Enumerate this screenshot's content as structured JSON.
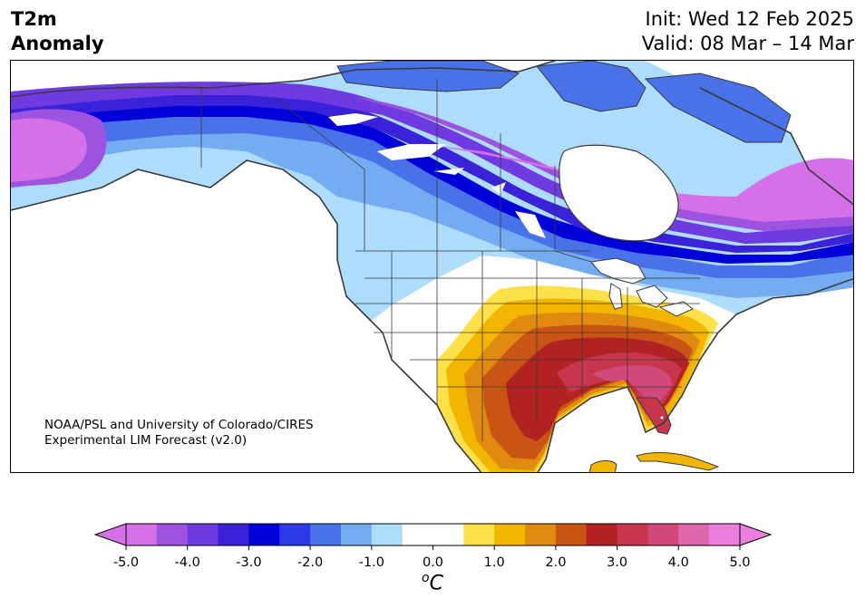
{
  "header": {
    "title_line1": "T2m",
    "title_line2": "Anomaly",
    "init": "Init: Wed 12 Feb 2025",
    "valid": "Valid: 08 Mar – 14 Mar"
  },
  "credit": {
    "line1": "NOAA/PSL and University of Colorado/CIRES",
    "line2": "Experimental LIM Forecast (v2.0)"
  },
  "colorbar": {
    "unit_base": "C",
    "unit_prefix": "o",
    "min": -5.0,
    "max": 5.0,
    "colors": [
      "#d670e8",
      "#9d52e0",
      "#6f3ae0",
      "#3a22d8",
      "#0000d8",
      "#2a3ae6",
      "#4a72e8",
      "#74acf2",
      "#aedcfc",
      "#ffffff",
      "#ffffff",
      "#fee049",
      "#f2b500",
      "#e08a12",
      "#c85416",
      "#b22222",
      "#c8364e",
      "#d0497a",
      "#de67ae",
      "#ec7ede"
    ],
    "tick_values": [
      -5.0,
      -4.0,
      -3.0,
      -2.0,
      -1.0,
      0.0,
      1.0,
      2.0,
      3.0,
      4.0,
      5.0
    ],
    "tick_labels": [
      "-5.0",
      "-4.0",
      "-3.0",
      "-2.0",
      "-1.0",
      "0.0",
      "1.0",
      "2.0",
      "3.0",
      "4.0",
      "5.0"
    ]
  },
  "map": {
    "colors": {
      "neutral": "#ffffff",
      "light_blue": "#aedcfc",
      "blue1": "#74acf2",
      "blue2": "#4a72e8",
      "blue3": "#2a3ae6",
      "blue4": "#0000d8",
      "indigo": "#3a22d8",
      "violet": "#6f3ae0",
      "purple": "#9d52e0",
      "magenta": "#d670e8",
      "yellow": "#fee049",
      "gold": "#f2b500",
      "orange": "#e08a12",
      "rust": "#c85416",
      "red": "#b22222",
      "crimson": "#c8364e",
      "rose": "#d0497a",
      "coast": "#3a3a3a"
    }
  }
}
